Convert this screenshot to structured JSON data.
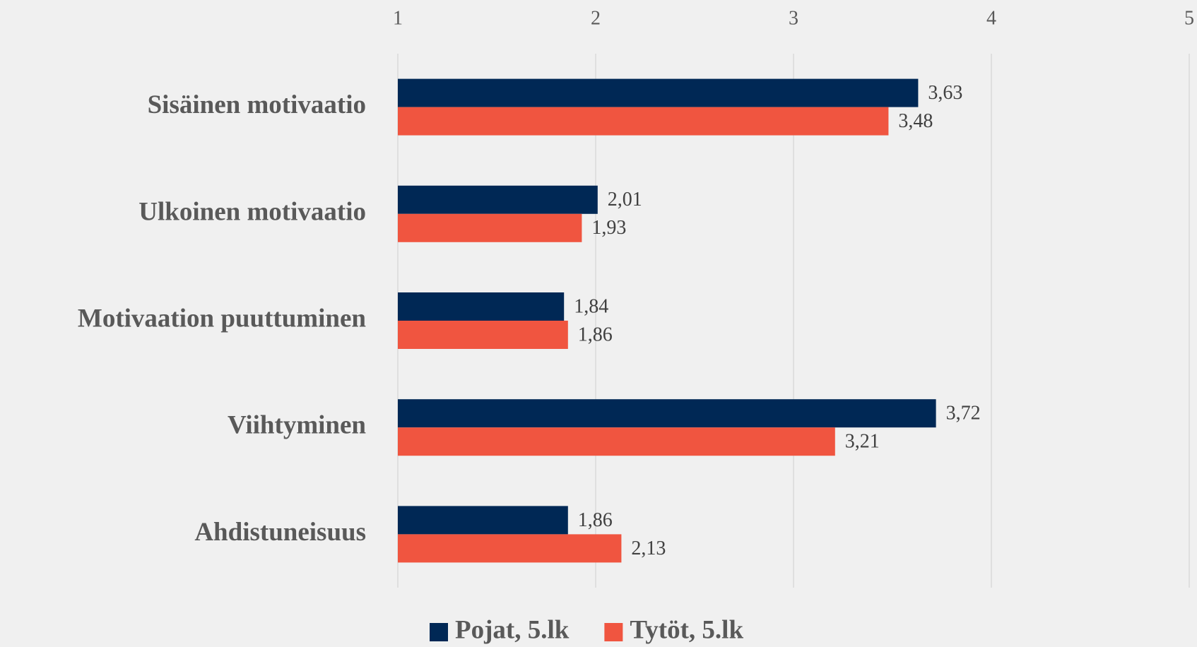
{
  "chart_data": {
    "type": "hbar",
    "categories": [
      "Sisäinen motivaatio",
      "Ulkoinen motivaatio",
      "Motivaation puuttuminen",
      "Viihtyminen",
      "Ahdistuneisuus"
    ],
    "series": [
      {
        "name": "Pojat, 5.lk",
        "color": "#002855",
        "values": [
          3.63,
          2.01,
          1.84,
          3.72,
          1.86
        ],
        "value_labels": [
          "3,63",
          "2,01",
          "1,84",
          "3,72",
          "1,86"
        ]
      },
      {
        "name": "Tytöt, 5.lk",
        "color": "#f05540",
        "values": [
          3.48,
          1.93,
          1.86,
          3.21,
          2.13
        ],
        "value_labels": [
          "3,48",
          "1,93",
          "1,86",
          "3,21",
          "2,13"
        ]
      }
    ],
    "xlim": [
      1,
      5
    ],
    "xticks": [
      1,
      2,
      3,
      4,
      5
    ],
    "grid": true,
    "legend": "bottom"
  }
}
